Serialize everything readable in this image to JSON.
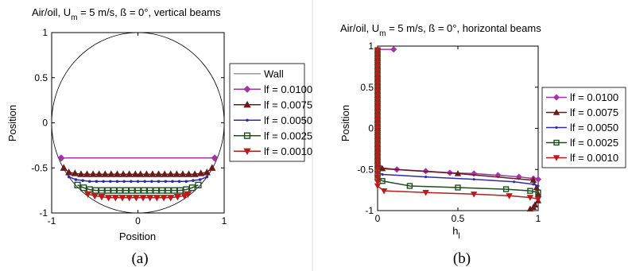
{
  "chart_data": [
    {
      "type": "line",
      "panel_label": "(a)",
      "title_parts": [
        "Air/oil, U",
        "m",
        " = 5 m/s, ß = 0°, vertical beams"
      ],
      "xlabel": "Position",
      "ylabel": "Position",
      "xlim": [
        -1,
        1
      ],
      "ylim": [
        -1,
        1
      ],
      "xticks": [
        "-1",
        "0",
        "1"
      ],
      "yticks": [
        "-1",
        "-0.5",
        "0",
        "0.5",
        "1"
      ],
      "grid": false,
      "legend_position": "right",
      "series": [
        {
          "name": "Wall",
          "color": "#999999",
          "marker": "none",
          "x": [],
          "y": []
        },
        {
          "name": "lf = 0.0100",
          "color": "#a334a3",
          "marker": "diamond",
          "x": [
            -0.89,
            0.89
          ],
          "y": [
            -0.39,
            -0.39
          ]
        },
        {
          "name": "lf = 0.0075",
          "color": "#6a1a1a",
          "marker": "triangle-up",
          "x": [
            -0.86,
            -0.8,
            -0.73,
            -0.66,
            -0.59,
            -0.52,
            -0.45,
            -0.38,
            -0.31,
            -0.24,
            -0.17,
            -0.1,
            -0.03,
            0.03,
            0.1,
            0.17,
            0.24,
            0.31,
            0.38,
            0.45,
            0.52,
            0.59,
            0.66,
            0.73,
            0.8,
            0.86
          ],
          "y": [
            -0.5,
            -0.55,
            -0.56,
            -0.57,
            -0.57,
            -0.57,
            -0.57,
            -0.57,
            -0.57,
            -0.57,
            -0.57,
            -0.57,
            -0.57,
            -0.57,
            -0.57,
            -0.57,
            -0.57,
            -0.57,
            -0.57,
            -0.57,
            -0.57,
            -0.57,
            -0.57,
            -0.56,
            -0.55,
            -0.5
          ]
        },
        {
          "name": "lf = 0.0050",
          "color": "#2b2bb0",
          "marker": "dot",
          "x": [
            -0.8,
            -0.72,
            -0.64,
            -0.56,
            -0.48,
            -0.4,
            -0.32,
            -0.24,
            -0.16,
            -0.08,
            0,
            0.08,
            0.16,
            0.24,
            0.32,
            0.4,
            0.48,
            0.56,
            0.64,
            0.72,
            0.8
          ],
          "y": [
            -0.6,
            -0.63,
            -0.64,
            -0.65,
            -0.65,
            -0.65,
            -0.65,
            -0.65,
            -0.65,
            -0.65,
            -0.65,
            -0.65,
            -0.65,
            -0.65,
            -0.65,
            -0.65,
            -0.65,
            -0.65,
            -0.64,
            -0.63,
            -0.6
          ]
        },
        {
          "name": "lf = 0.0025",
          "color": "#1f4d1f",
          "marker": "square",
          "x": [
            -0.7,
            -0.63,
            -0.56,
            -0.49,
            -0.42,
            -0.35,
            -0.28,
            -0.21,
            -0.14,
            -0.07,
            0,
            0.07,
            0.14,
            0.21,
            0.28,
            0.35,
            0.42,
            0.49,
            0.56,
            0.63,
            0.7
          ],
          "y": [
            -0.69,
            -0.72,
            -0.74,
            -0.75,
            -0.75,
            -0.75,
            -0.75,
            -0.75,
            -0.75,
            -0.75,
            -0.75,
            -0.75,
            -0.75,
            -0.75,
            -0.75,
            -0.75,
            -0.75,
            -0.75,
            -0.74,
            -0.72,
            -0.69
          ]
        },
        {
          "name": "lf = 0.0010",
          "color": "#b81c1c",
          "marker": "triangle-down",
          "x": [
            -0.58,
            -0.5,
            -0.42,
            -0.34,
            -0.26,
            -0.18,
            -0.1,
            -0.02,
            0.06,
            0.14,
            0.22,
            0.3,
            0.38,
            0.46,
            0.54,
            0.58
          ],
          "y": [
            -0.79,
            -0.81,
            -0.82,
            -0.83,
            -0.83,
            -0.83,
            -0.83,
            -0.83,
            -0.83,
            -0.83,
            -0.83,
            -0.83,
            -0.83,
            -0.82,
            -0.81,
            -0.79
          ]
        }
      ]
    },
    {
      "type": "line",
      "panel_label": "(b)",
      "title_parts": [
        "Air/oil, U",
        "m",
        " = 5 m/s, ß = 0°, horizontal beams"
      ],
      "xlabel_parts": [
        "h",
        "l"
      ],
      "ylabel": "Position",
      "xlim": [
        0,
        1
      ],
      "ylim": [
        -1,
        1
      ],
      "xticks": [
        "0",
        "0.5",
        "1"
      ],
      "yticks": [
        "-1",
        "-0.5",
        "0",
        "0.5",
        "1"
      ],
      "grid": false,
      "legend_position": "right",
      "series": [
        {
          "name": "lf = 0.0100",
          "color": "#a334a3",
          "marker": "diamond",
          "x": [
            0.1,
            0.0,
            0.0,
            0.0,
            0.0,
            0.0,
            0.0,
            0.0,
            0.0,
            0.0,
            0.0,
            0.0,
            0.0,
            0.0,
            0.0,
            0.0,
            0.0,
            0.0,
            0.0,
            0.0,
            0.0,
            0.0,
            0.0,
            0.0,
            0.0,
            0.0,
            0.0,
            0.0,
            0.0,
            0.0,
            0.02,
            0.12,
            0.3,
            0.45,
            0.6,
            0.75,
            0.88,
            0.97,
            1.0
          ],
          "y": [
            0.96,
            0.96,
            0.9,
            0.85,
            0.8,
            0.75,
            0.7,
            0.65,
            0.6,
            0.55,
            0.5,
            0.45,
            0.4,
            0.35,
            0.3,
            0.25,
            0.2,
            0.15,
            0.1,
            0.05,
            0.0,
            -0.05,
            -0.1,
            -0.15,
            -0.2,
            -0.25,
            -0.3,
            -0.35,
            -0.4,
            -0.45,
            -0.48,
            -0.5,
            -0.52,
            -0.54,
            -0.55,
            -0.57,
            -0.59,
            -0.61,
            -0.62
          ]
        },
        {
          "name": "lf = 0.0075",
          "color": "#6a1a1a",
          "marker": "triangle-up",
          "x": [
            0.0,
            0.0,
            0.0,
            0.0,
            0.0,
            0.0,
            0.0,
            0.0,
            0.0,
            0.0,
            0.0,
            0.0,
            0.0,
            0.0,
            0.0,
            0.0,
            0.0,
            0.0,
            0.0,
            0.0,
            0.0,
            0.0,
            0.0,
            0.0,
            0.0,
            0.0,
            0.0,
            0.0,
            0.0,
            0.03,
            0.5,
            0.97,
            0.99,
            1.0,
            1.0,
            0.98,
            0.97,
            0.95
          ],
          "y": [
            0.95,
            0.9,
            0.85,
            0.8,
            0.75,
            0.7,
            0.65,
            0.6,
            0.55,
            0.5,
            0.45,
            0.4,
            0.35,
            0.3,
            0.25,
            0.2,
            0.15,
            0.1,
            0.05,
            0.0,
            -0.05,
            -0.1,
            -0.15,
            -0.2,
            -0.25,
            -0.3,
            -0.35,
            -0.4,
            -0.45,
            -0.49,
            -0.55,
            -0.63,
            -0.72,
            -0.8,
            -0.88,
            -0.93,
            -0.96,
            -0.98
          ]
        },
        {
          "name": "lf = 0.0050",
          "color": "#2b2bb0",
          "marker": "dot",
          "x": [
            0.0,
            0.0,
            0.0,
            0.0,
            0.0,
            0.0,
            0.0,
            0.0,
            0.0,
            0.0,
            0.0,
            0.0,
            0.0,
            0.0,
            0.0,
            0.0,
            0.0,
            0.0,
            0.0,
            0.0,
            0.0,
            0.0,
            0.0,
            0.0,
            0.0,
            0.0,
            0.0,
            0.0,
            0.0,
            0.0,
            0.0,
            0.03,
            0.3,
            0.6,
            0.85,
            0.97,
            1.0
          ],
          "y": [
            0.95,
            0.9,
            0.85,
            0.8,
            0.75,
            0.7,
            0.65,
            0.6,
            0.55,
            0.5,
            0.45,
            0.4,
            0.35,
            0.3,
            0.25,
            0.2,
            0.15,
            0.1,
            0.05,
            0.0,
            -0.05,
            -0.1,
            -0.15,
            -0.2,
            -0.25,
            -0.3,
            -0.35,
            -0.4,
            -0.45,
            -0.5,
            -0.54,
            -0.56,
            -0.59,
            -0.62,
            -0.65,
            -0.68,
            -0.7
          ]
        },
        {
          "name": "lf = 0.0025",
          "color": "#1f4d1f",
          "marker": "square",
          "x": [
            0.0,
            0.0,
            0.0,
            0.0,
            0.0,
            0.0,
            0.0,
            0.0,
            0.0,
            0.0,
            0.0,
            0.0,
            0.0,
            0.0,
            0.0,
            0.0,
            0.0,
            0.0,
            0.0,
            0.0,
            0.0,
            0.0,
            0.0,
            0.0,
            0.0,
            0.0,
            0.0,
            0.0,
            0.0,
            0.0,
            0.0,
            0.0,
            0.03,
            0.2,
            0.5,
            0.8,
            0.95,
            1.0
          ],
          "y": [
            0.95,
            0.9,
            0.85,
            0.8,
            0.75,
            0.7,
            0.65,
            0.6,
            0.55,
            0.5,
            0.45,
            0.4,
            0.35,
            0.3,
            0.25,
            0.2,
            0.15,
            0.1,
            0.05,
            0.0,
            -0.05,
            -0.1,
            -0.15,
            -0.2,
            -0.25,
            -0.3,
            -0.35,
            -0.4,
            -0.45,
            -0.5,
            -0.55,
            -0.6,
            -0.64,
            -0.7,
            -0.72,
            -0.74,
            -0.76,
            -0.78
          ]
        },
        {
          "name": "lf = 0.0010",
          "color": "#b81c1c",
          "marker": "triangle-down",
          "x": [
            0.0,
            0.0,
            0.0,
            0.0,
            0.0,
            0.0,
            0.0,
            0.0,
            0.0,
            0.0,
            0.0,
            0.0,
            0.0,
            0.0,
            0.0,
            0.0,
            0.0,
            0.0,
            0.0,
            0.0,
            0.0,
            0.0,
            0.0,
            0.0,
            0.0,
            0.0,
            0.0,
            0.0,
            0.0,
            0.0,
            0.0,
            0.0,
            0.0,
            0.0,
            0.04,
            0.3,
            0.6,
            0.82,
            0.95,
            1.0
          ],
          "y": [
            0.95,
            0.9,
            0.85,
            0.8,
            0.75,
            0.7,
            0.65,
            0.6,
            0.55,
            0.5,
            0.45,
            0.4,
            0.35,
            0.3,
            0.25,
            0.2,
            0.15,
            0.1,
            0.05,
            0.0,
            -0.05,
            -0.1,
            -0.15,
            -0.2,
            -0.25,
            -0.3,
            -0.35,
            -0.4,
            -0.45,
            -0.5,
            -0.55,
            -0.6,
            -0.65,
            -0.7,
            -0.76,
            -0.78,
            -0.8,
            -0.82,
            -0.84,
            -0.86
          ]
        }
      ]
    }
  ]
}
